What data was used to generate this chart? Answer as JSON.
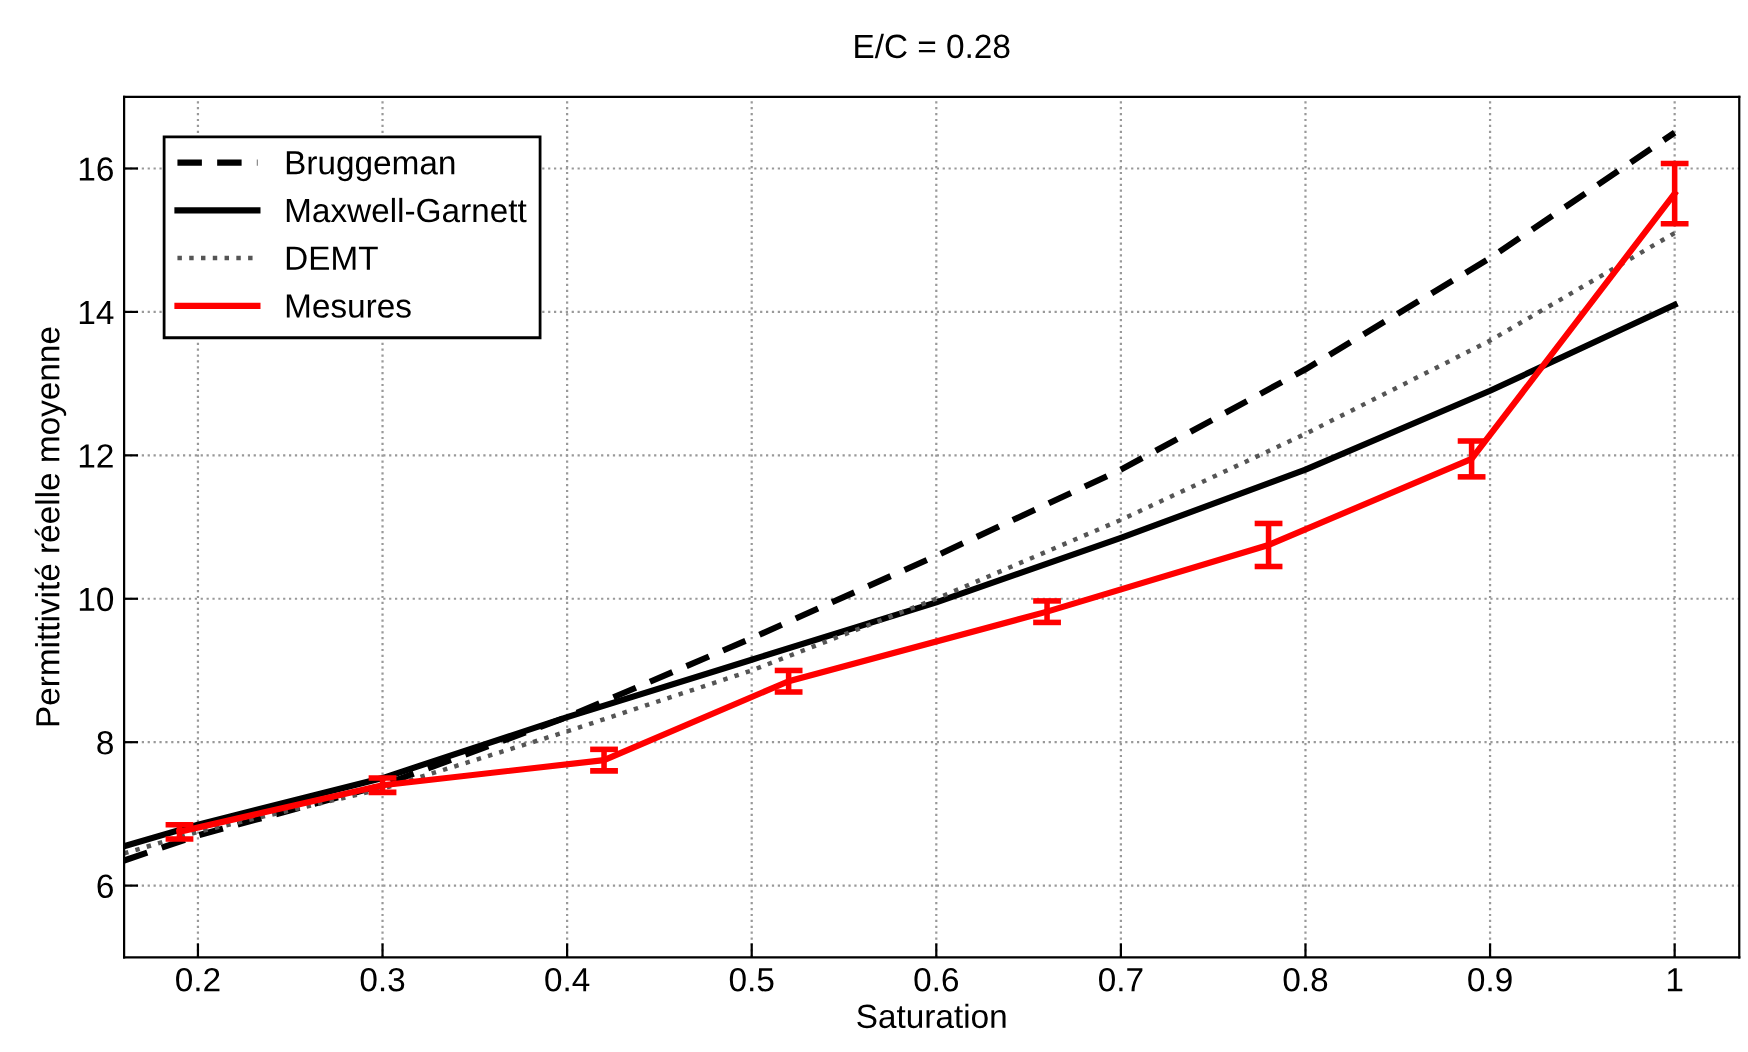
{
  "chart_data": {
    "type": "line",
    "title": "E/C = 0.28",
    "xlabel": "Saturation",
    "ylabel": "Permittivité réelle moyenne",
    "xlim": [
      0.16,
      1.035
    ],
    "ylim": [
      5,
      17
    ],
    "xticks": [
      0.2,
      0.3,
      0.4,
      0.5,
      0.6,
      0.7,
      0.8,
      0.9,
      1
    ],
    "yticks": [
      6,
      8,
      10,
      12,
      14,
      16
    ],
    "grid": true,
    "legend": "top left",
    "series": [
      {
        "name": "Bruggeman",
        "color": "#000000",
        "line_style": "dashed",
        "x": [
          0.16,
          0.2,
          0.3,
          0.4,
          0.5,
          0.6,
          0.7,
          0.8,
          0.9,
          1.0
        ],
        "values": [
          6.35,
          6.7,
          7.4,
          8.35,
          9.45,
          10.6,
          11.8,
          13.2,
          14.75,
          16.5
        ]
      },
      {
        "name": "Maxwell-Garnett",
        "color": "#000000",
        "line_style": "solid",
        "x": [
          0.16,
          0.2,
          0.3,
          0.4,
          0.5,
          0.6,
          0.7,
          0.8,
          0.9,
          1.0
        ],
        "values": [
          6.55,
          6.85,
          7.5,
          8.35,
          9.15,
          9.95,
          10.85,
          11.8,
          12.9,
          14.1
        ]
      },
      {
        "name": "DEMT",
        "color": "#555555",
        "line_style": "dotted",
        "x": [
          0.16,
          0.2,
          0.3,
          0.4,
          0.5,
          0.6,
          0.7,
          0.8,
          0.9,
          1.0
        ],
        "values": [
          6.45,
          6.75,
          7.35,
          8.15,
          9.0,
          10.0,
          11.1,
          12.3,
          13.6,
          15.1
        ]
      },
      {
        "name": "Mesures",
        "color": "#ff0000",
        "line_style": "solid",
        "x": [
          0.19,
          0.3,
          0.42,
          0.52,
          0.66,
          0.78,
          0.89,
          1.0
        ],
        "values": [
          6.75,
          7.4,
          7.75,
          8.85,
          9.82,
          10.75,
          11.95,
          15.65
        ],
        "errors": [
          0.1,
          0.1,
          0.15,
          0.15,
          0.15,
          0.3,
          0.25,
          0.42
        ]
      }
    ]
  }
}
